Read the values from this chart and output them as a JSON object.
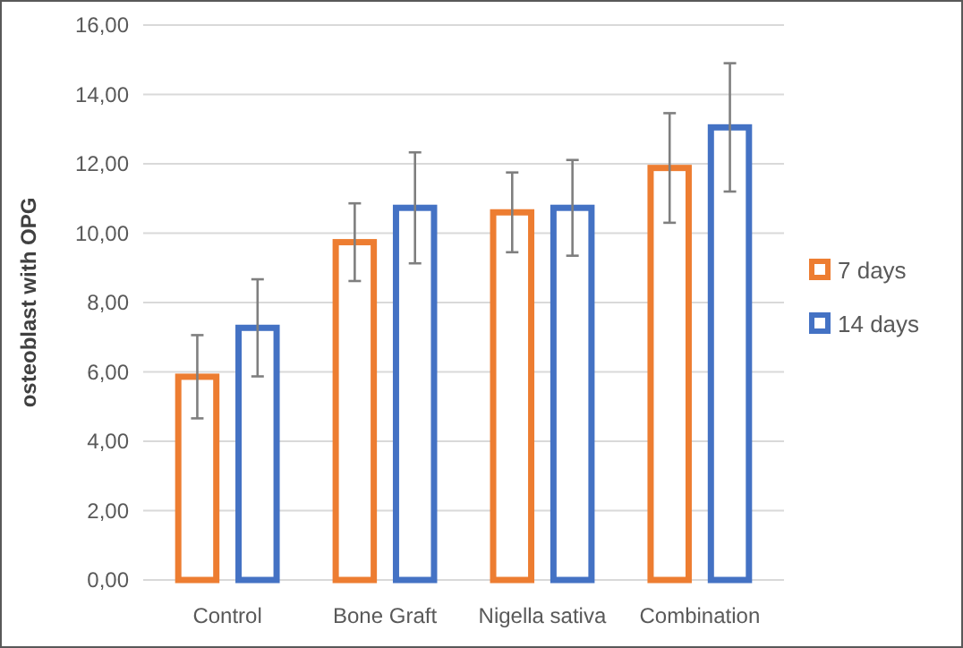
{
  "chart_data": {
    "type": "bar",
    "ylabel": "osteoblast with OPG",
    "categories": [
      "Control",
      "Bone Graft",
      "Nigella sativa",
      "Combination"
    ],
    "series": [
      {
        "name": "7 days",
        "color": "#ed7d31",
        "values": [
          5.86,
          9.74,
          10.6,
          11.88
        ],
        "errors": [
          1.2,
          1.12,
          1.15,
          1.58
        ]
      },
      {
        "name": "14 days",
        "color": "#4472c4",
        "values": [
          7.27,
          10.73,
          10.73,
          13.05
        ],
        "errors": [
          1.4,
          1.6,
          1.38,
          1.85
        ]
      }
    ],
    "ylim": [
      0,
      16
    ],
    "yticks": [
      {
        "value": 0,
        "label": "0,00"
      },
      {
        "value": 2,
        "label": "2,00"
      },
      {
        "value": 4,
        "label": "4,00"
      },
      {
        "value": 6,
        "label": "6,00"
      },
      {
        "value": 8,
        "label": "8,00"
      },
      {
        "value": 10,
        "label": "10,00"
      },
      {
        "value": 12,
        "label": "12,00"
      },
      {
        "value": 14,
        "label": "14,00"
      },
      {
        "value": 16,
        "label": "16,00"
      }
    ],
    "grid": "y",
    "legend": "right"
  }
}
